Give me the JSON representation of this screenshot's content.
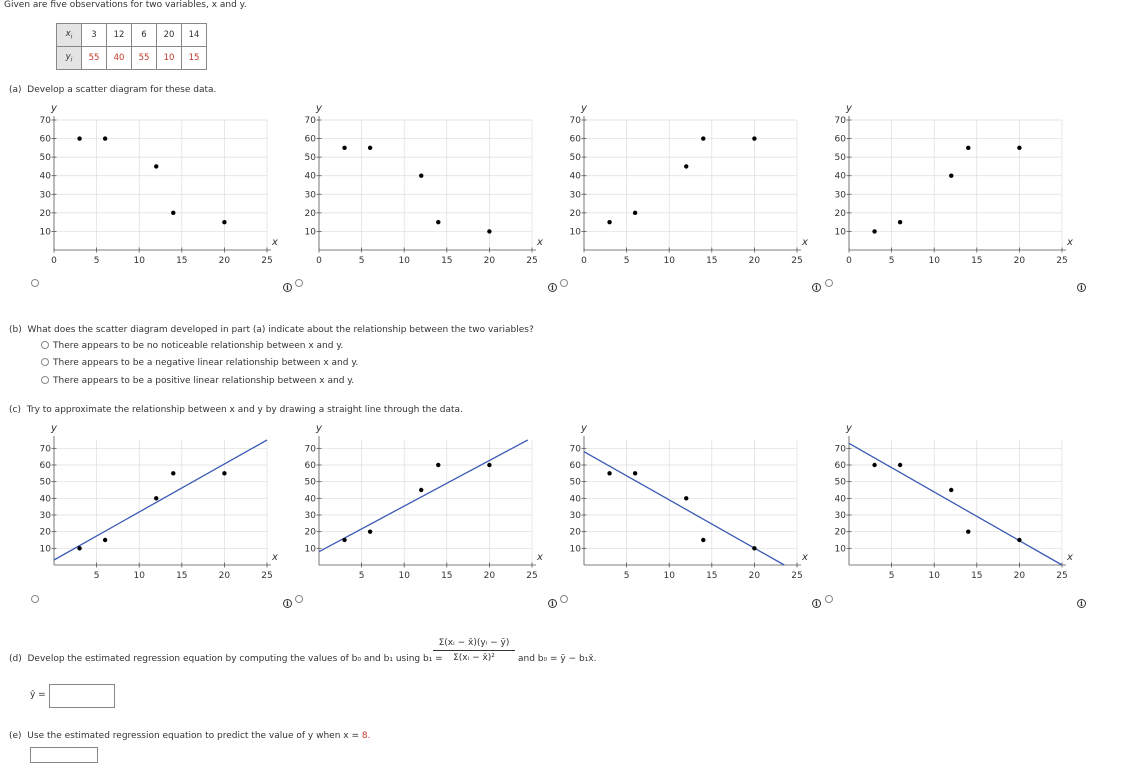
{
  "intro": "Given are five observations for two variables, x and y.",
  "table": {
    "x_label": "x",
    "x_sub": "i",
    "y_label": "y",
    "y_sub": "i",
    "x_values": [
      "3",
      "12",
      "6",
      "20",
      "14"
    ],
    "y_values": [
      "55",
      "40",
      "55",
      "10",
      "15"
    ]
  },
  "part_a": {
    "label": "(a)",
    "text": "Develop a scatter diagram for these data."
  },
  "part_b": {
    "label": "(b)",
    "text": "What does the scatter diagram developed in part (a) indicate about the relationship between the two variables?",
    "options": [
      "There appears to be no noticeable relationship between x and y.",
      "There appears to be a negative linear relationship between x and y.",
      "There appears to be a positive linear relationship between x and y."
    ]
  },
  "part_c": {
    "label": "(c)",
    "text": "Try to approximate the relationship between x and y by drawing a straight line through the data."
  },
  "part_d": {
    "label": "(d)",
    "text": "Develop the estimated regression equation by computing the values of b₀ and b₁ using b₁ =",
    "numerator": "Σ(xᵢ − x̄)(yᵢ − ȳ)",
    "denominator": "Σ(xᵢ − x̄)²",
    "tail": "and b₀ = ȳ − b₁x̄.",
    "yhat_label": "ŷ =",
    "yhat_value": ""
  },
  "part_e": {
    "label": "(e)",
    "text_before": "Use the estimated regression equation to predict the value of y when x =",
    "x_value": "8.",
    "answer_value": ""
  },
  "chart_data": [
    {
      "group": "a",
      "type": "scatter",
      "xlabel": "x",
      "ylabel": "y",
      "xlim": [
        0,
        25
      ],
      "ylim": [
        0,
        70
      ],
      "xticks": [
        0,
        5,
        10,
        15,
        20,
        25
      ],
      "yticks": [
        10,
        20,
        30,
        40,
        50,
        60,
        70
      ],
      "points": [
        [
          3,
          60
        ],
        [
          6,
          60
        ],
        [
          12,
          45
        ],
        [
          14,
          20
        ],
        [
          20,
          15
        ]
      ]
    },
    {
      "group": "a",
      "type": "scatter",
      "xlabel": "x",
      "ylabel": "y",
      "xlim": [
        0,
        25
      ],
      "ylim": [
        0,
        70
      ],
      "xticks": [
        0,
        5,
        10,
        15,
        20,
        25
      ],
      "yticks": [
        10,
        20,
        30,
        40,
        50,
        60,
        70
      ],
      "points": [
        [
          3,
          55
        ],
        [
          6,
          55
        ],
        [
          12,
          40
        ],
        [
          14,
          15
        ],
        [
          20,
          10
        ]
      ]
    },
    {
      "group": "a",
      "type": "scatter",
      "xlabel": "x",
      "ylabel": "y",
      "xlim": [
        0,
        25
      ],
      "ylim": [
        0,
        70
      ],
      "xticks": [
        0,
        5,
        10,
        15,
        20,
        25
      ],
      "yticks": [
        10,
        20,
        30,
        40,
        50,
        60,
        70
      ],
      "points": [
        [
          3,
          15
        ],
        [
          6,
          20
        ],
        [
          12,
          45
        ],
        [
          14,
          60
        ],
        [
          20,
          60
        ]
      ]
    },
    {
      "group": "a",
      "type": "scatter",
      "xlabel": "x",
      "ylabel": "y",
      "xlim": [
        0,
        25
      ],
      "ylim": [
        0,
        70
      ],
      "xticks": [
        0,
        5,
        10,
        15,
        20,
        25
      ],
      "yticks": [
        10,
        20,
        30,
        40,
        50,
        60,
        70
      ],
      "points": [
        [
          3,
          10
        ],
        [
          6,
          15
        ],
        [
          12,
          40
        ],
        [
          14,
          55
        ],
        [
          20,
          55
        ]
      ]
    },
    {
      "group": "c",
      "type": "scatter",
      "xlabel": "x",
      "ylabel": "y",
      "xlim": [
        0,
        25
      ],
      "ylim": [
        0,
        75
      ],
      "xticks": [
        5,
        10,
        15,
        20,
        25
      ],
      "yticks": [
        10,
        20,
        30,
        40,
        50,
        60,
        70
      ],
      "points": [
        [
          3,
          10
        ],
        [
          6,
          15
        ],
        [
          12,
          40
        ],
        [
          14,
          55
        ],
        [
          20,
          55
        ]
      ],
      "line": [
        [
          0,
          3
        ],
        [
          25,
          75
        ]
      ]
    },
    {
      "group": "c",
      "type": "scatter",
      "xlabel": "x",
      "ylabel": "y",
      "xlim": [
        0,
        25
      ],
      "ylim": [
        0,
        75
      ],
      "xticks": [
        5,
        10,
        15,
        20,
        25
      ],
      "yticks": [
        10,
        20,
        30,
        40,
        50,
        60,
        70
      ],
      "points": [
        [
          3,
          15
        ],
        [
          6,
          20
        ],
        [
          12,
          45
        ],
        [
          14,
          60
        ],
        [
          20,
          60
        ]
      ],
      "line": [
        [
          0,
          8
        ],
        [
          24.5,
          75
        ]
      ]
    },
    {
      "group": "c",
      "type": "scatter",
      "xlabel": "x",
      "ylabel": "y",
      "xlim": [
        0,
        25
      ],
      "ylim": [
        0,
        75
      ],
      "xticks": [
        5,
        10,
        15,
        20,
        25
      ],
      "yticks": [
        10,
        20,
        30,
        40,
        50,
        60,
        70
      ],
      "points": [
        [
          3,
          55
        ],
        [
          6,
          55
        ],
        [
          12,
          40
        ],
        [
          14,
          15
        ],
        [
          20,
          10
        ]
      ],
      "line": [
        [
          0,
          68
        ],
        [
          23.5,
          0
        ]
      ]
    },
    {
      "group": "c",
      "type": "scatter",
      "xlabel": "x",
      "ylabel": "y",
      "xlim": [
        0,
        25
      ],
      "ylim": [
        0,
        75
      ],
      "xticks": [
        5,
        10,
        15,
        20,
        25
      ],
      "yticks": [
        10,
        20,
        30,
        40,
        50,
        60,
        70
      ],
      "points": [
        [
          3,
          60
        ],
        [
          6,
          60
        ],
        [
          12,
          45
        ],
        [
          14,
          20
        ],
        [
          20,
          15
        ]
      ],
      "line": [
        [
          0,
          73
        ],
        [
          25,
          0
        ]
      ]
    }
  ]
}
